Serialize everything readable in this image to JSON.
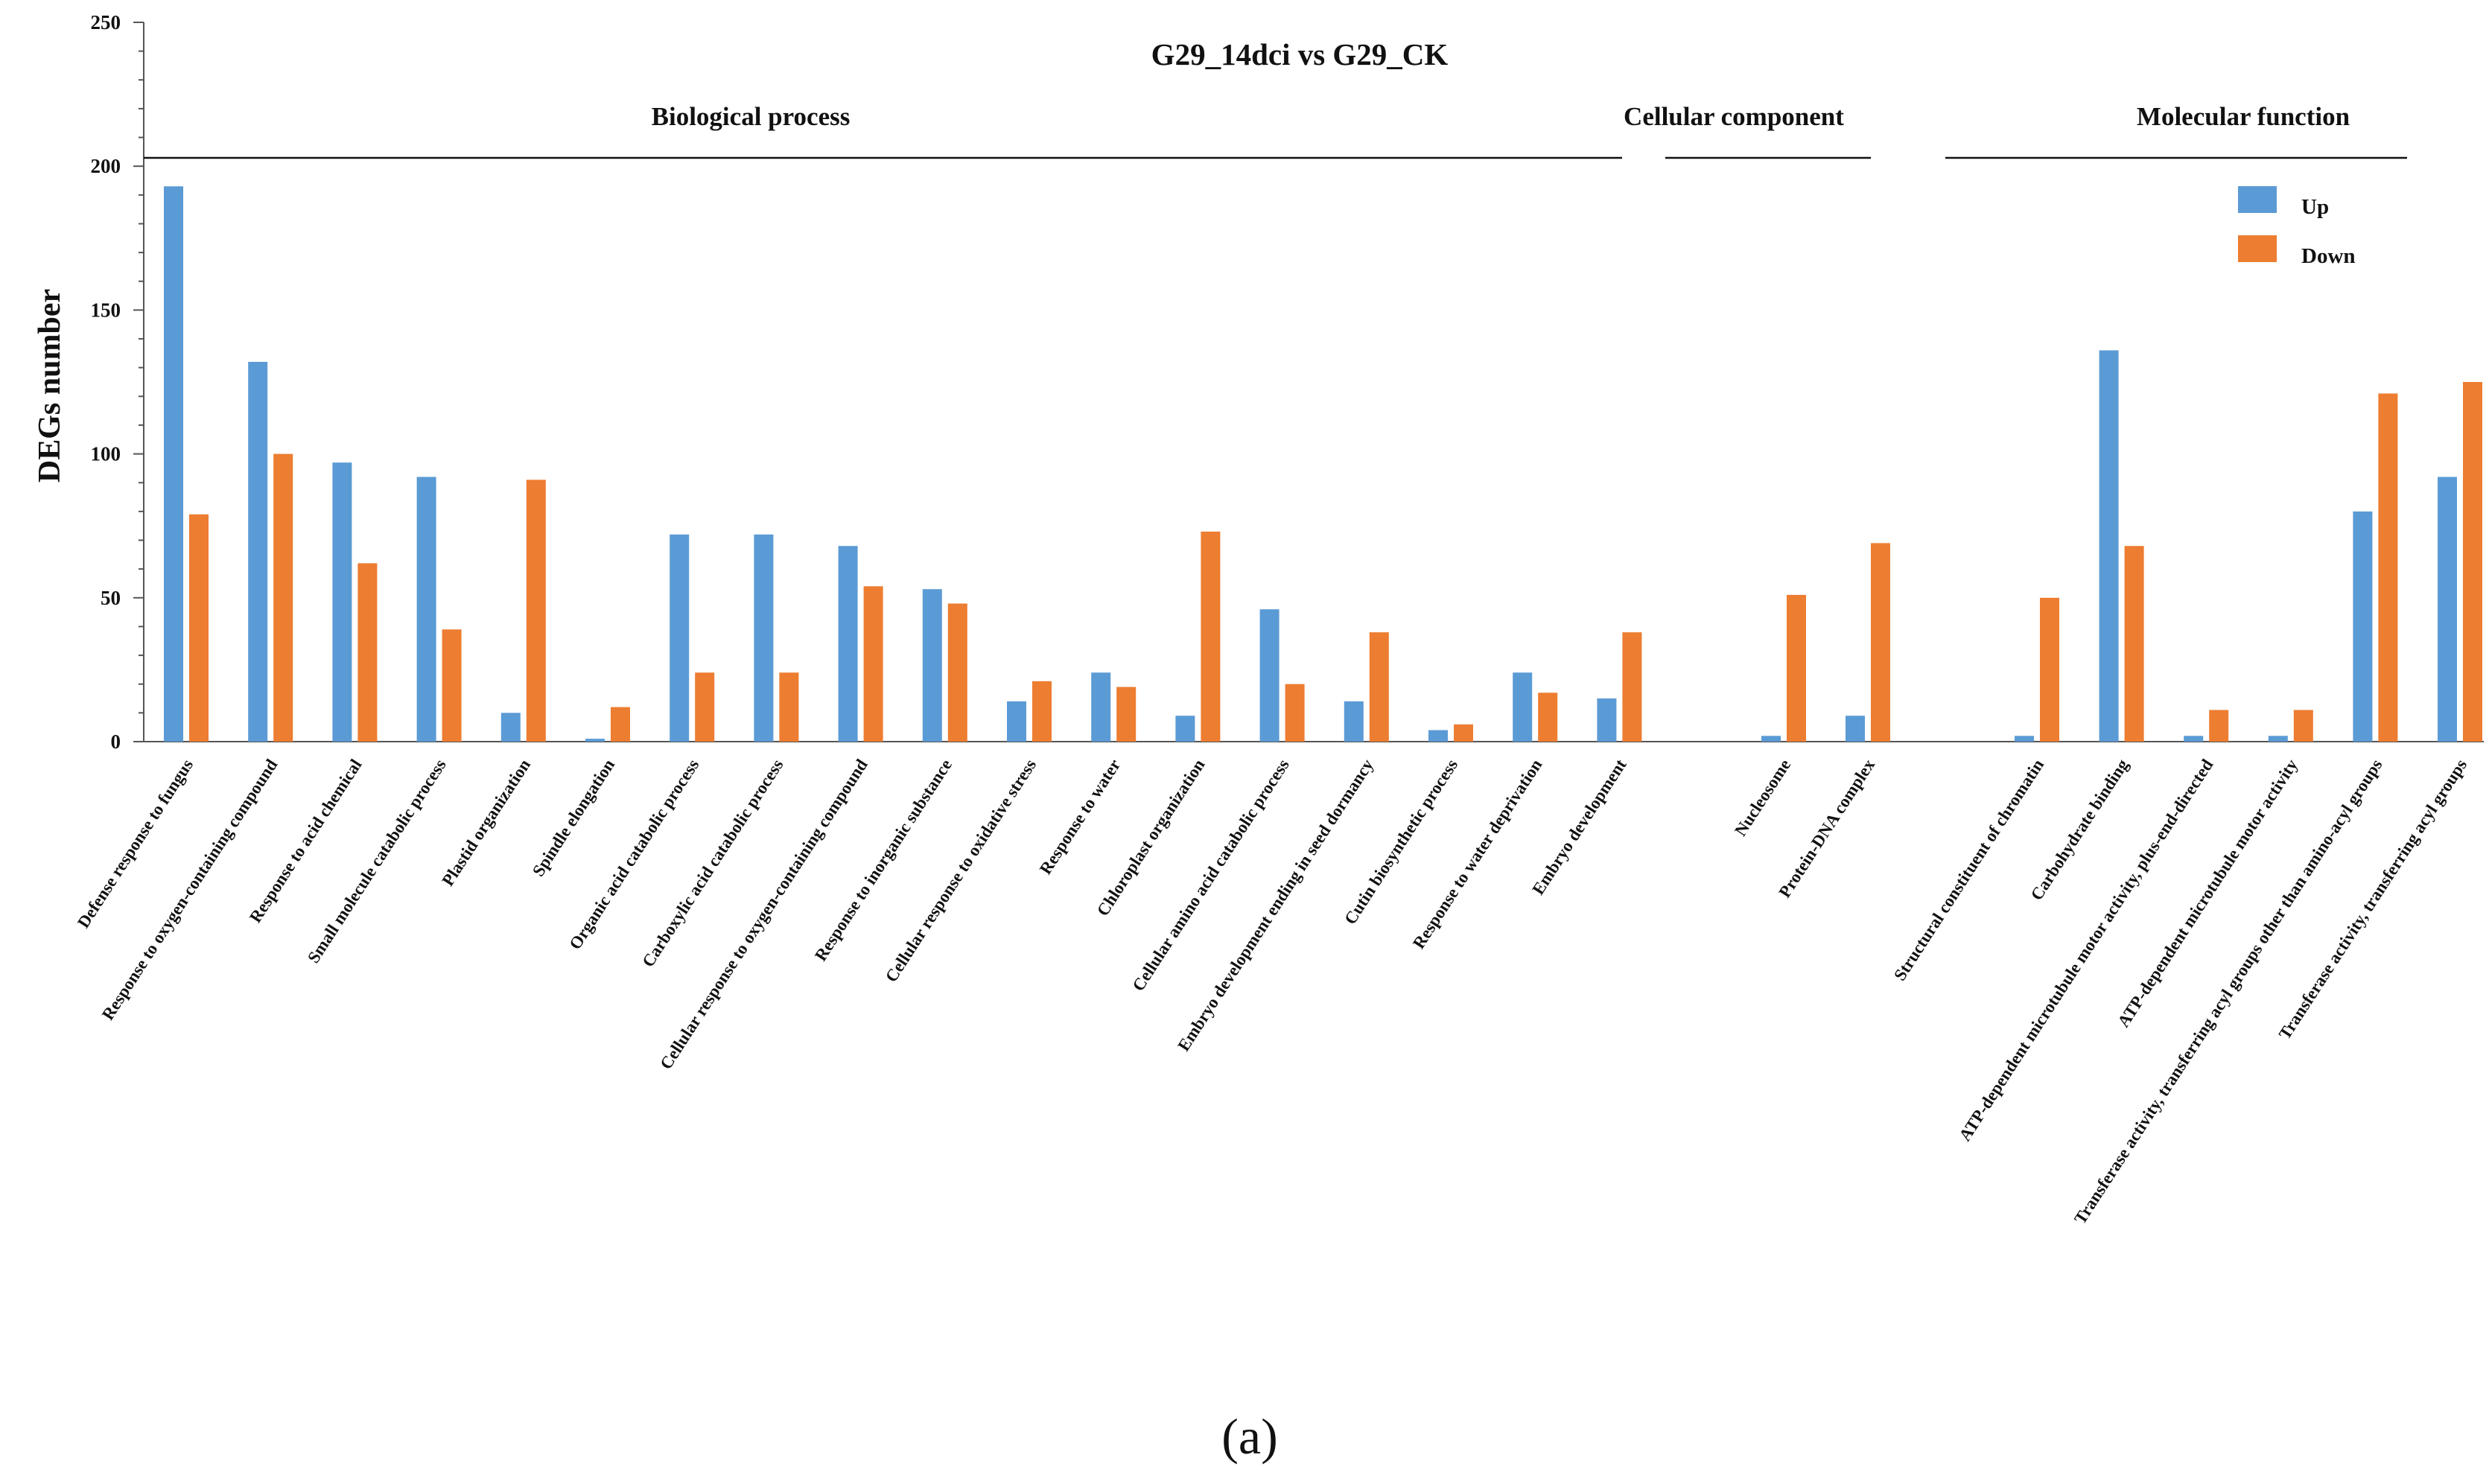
{
  "chart_data": {
    "type": "bar",
    "title": "G29_14dci vs G29_CK",
    "ylabel": "DEGs number",
    "xlabel": "",
    "ylim": [
      0,
      250
    ],
    "yticks": [
      0,
      50,
      100,
      150,
      200,
      250
    ],
    "grid": false,
    "legend_position": "top-right",
    "caption": "(a)",
    "colors": {
      "Up": "#5b9bd5",
      "Down": "#ed7d31",
      "axis": "#555555",
      "text": "#111111"
    },
    "groups": [
      {
        "name": "Biological process",
        "categories": [
          "Defense response to fungus",
          "Response to oxygen-containing compound",
          "Response to acid chemical",
          "Small molecule catabolic process",
          "Plastid organization",
          "Spindle elongation",
          "Organic acid catabolic process",
          "Carboxylic acid catabolic process",
          "Cellular response to oxygen-containing compound",
          "Response to inorganic substance",
          "Cellular response to oxidative stress",
          "Response to water",
          "Chloroplast organization",
          "Cellular amino acid catabolic process",
          "Embryo development ending in seed dormancy",
          "Cutin biosynthetic process",
          "Response to water deprivation",
          "Embryo development"
        ]
      },
      {
        "name": "Cellular  component",
        "categories": [
          "Nucleosome",
          "Protein-DNA complex"
        ]
      },
      {
        "name": "Molecular function",
        "categories": [
          "Structural constituent of chromatin",
          "Carbohydrate binding",
          "ATP-dependent microtubule motor activity, plus-end-directed",
          "ATP-dependent microtubule motor activity",
          "Transferase activity, transferring acyl groups other than amino-acyl groups",
          "Transferase activity, transferring acyl groups"
        ]
      }
    ],
    "series": [
      {
        "name": "Up",
        "values": [
          193,
          132,
          97,
          92,
          10,
          1,
          72,
          72,
          68,
          53,
          14,
          24,
          9,
          46,
          14,
          4,
          24,
          15,
          2,
          9,
          2,
          136,
          2,
          2,
          80,
          92
        ]
      },
      {
        "name": "Down",
        "values": [
          79,
          100,
          62,
          39,
          91,
          12,
          24,
          24,
          54,
          48,
          21,
          19,
          73,
          20,
          38,
          6,
          17,
          38,
          51,
          69,
          50,
          68,
          11,
          11,
          121,
          125
        ]
      }
    ]
  }
}
